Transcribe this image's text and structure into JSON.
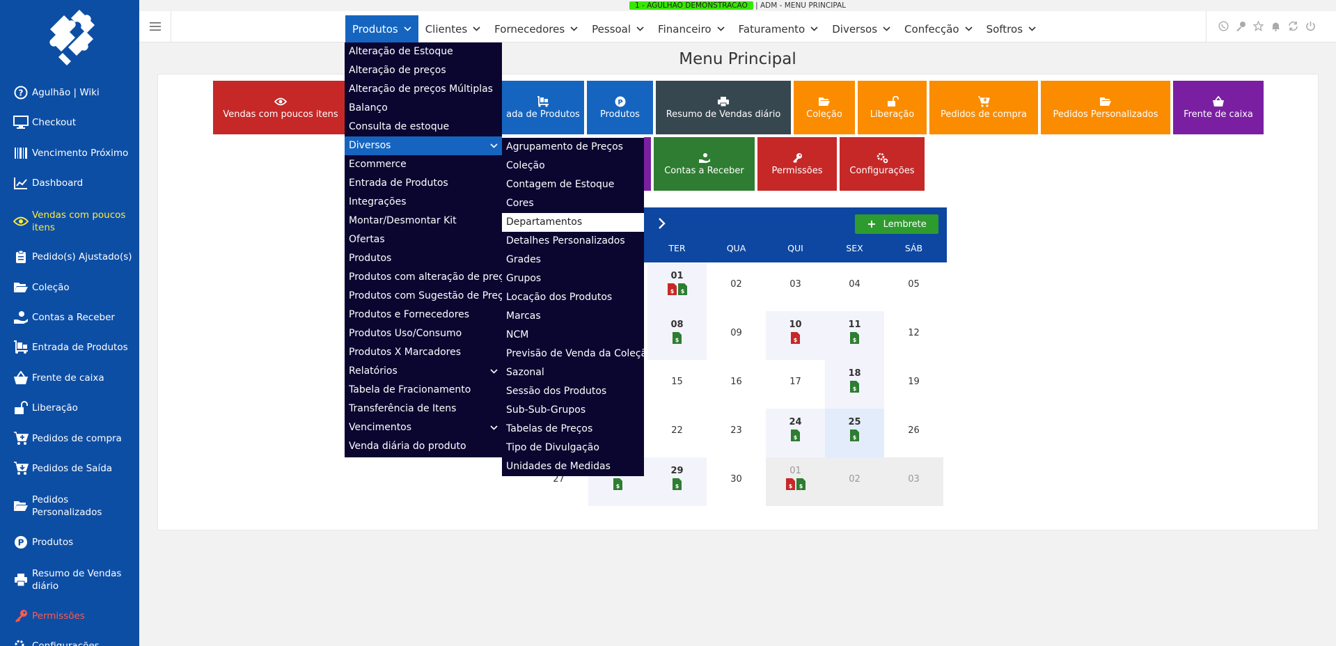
{
  "topbar": {
    "env_label": "1 - AGULHAO DEMONSTRACAO",
    "sep": "|",
    "context": "ADM - MENU PRINCIPAL"
  },
  "sidebar": {
    "items": [
      {
        "label": "Agulhão | Wiki",
        "icon": "help-circle-icon"
      },
      {
        "label": "Checkout",
        "icon": "monitor-icon"
      },
      {
        "label": "Vencimento Próximo",
        "icon": "barcode-icon"
      },
      {
        "label": "Dashboard",
        "icon": "line-chart-icon"
      },
      {
        "label": "Vendas com poucos itens",
        "icon": "eye-icon"
      },
      {
        "label": "Pedido(s) Ajustado(s)",
        "icon": "clipboard-icon"
      },
      {
        "label": "Coleção",
        "icon": "folder-open-icon"
      },
      {
        "label": "Contas a Receber",
        "icon": "hand-money-icon"
      },
      {
        "label": "Entrada de Produtos",
        "icon": "dolly-icon"
      },
      {
        "label": "Frente de caixa",
        "icon": "basket-icon"
      },
      {
        "label": "Liberação",
        "icon": "unlock-icon"
      },
      {
        "label": "Pedidos de compra",
        "icon": "cart-plus-icon"
      },
      {
        "label": "Pedidos de Saída",
        "icon": "cart-arrow-icon"
      },
      {
        "label": "Pedidos Personalizados",
        "icon": "folder-open-icon"
      },
      {
        "label": "Produtos",
        "icon": "product-p-icon"
      },
      {
        "label": "Resumo de Vendas diário",
        "icon": "printer-icon"
      },
      {
        "label": "Permissões",
        "icon": "key-icon"
      },
      {
        "label": "Configurações",
        "icon": "gears-icon"
      }
    ]
  },
  "nav": {
    "items": [
      "Produtos",
      "Clientes",
      "Fornecedores",
      "Pessoal",
      "Financeiro",
      "Faturamento",
      "Diversos",
      "Confecção",
      "Softros"
    ]
  },
  "header_icons": [
    "whatsapp-icon",
    "key-icon",
    "star-icon",
    "bell-icon",
    "refresh-icon",
    "power-icon"
  ],
  "page_title": "Menu Principal",
  "tiles": {
    "vendas_poucos": "Vendas com poucos itens",
    "entrada": "ada de Produtos",
    "produtos": "Produtos",
    "resumo": "Resumo de Vendas diário",
    "colecao": "Coleção",
    "liberacao": "Liberação",
    "pedidos_compra": "Pedidos de compra",
    "pedidos_personalizados": "Pedidos Personalizados",
    "frente_caixa": "Frente de caixa",
    "contas_receber": "Contas a Receber",
    "permissoes": "Permissões",
    "configuracoes": "Configurações"
  },
  "calendar": {
    "lembrete_label": "Lembrete",
    "weekdays_visible": [
      "TER",
      "QUA",
      "QUI",
      "SEX",
      "SÁB"
    ],
    "rows": [
      [
        "01",
        "02",
        "03",
        "04",
        "05"
      ],
      [
        "08",
        "09",
        "10",
        "11",
        "12"
      ],
      [
        "15",
        "16",
        "17",
        "18",
        "19"
      ],
      [
        "22",
        "23",
        "24",
        "25",
        "26"
      ],
      [
        "29",
        "30",
        "01",
        "02",
        "03"
      ]
    ],
    "row5_first_col": "27",
    "colors": {
      "doc_red": "#c62828",
      "doc_green": "#2e7d32"
    }
  },
  "menu_produtos": {
    "items": [
      "Alteração de Estoque",
      "Alteração de preços",
      "Alteração de preços Múltiplas",
      "Balanço",
      "Consulta de estoque",
      "Diversos",
      "Ecommerce",
      "Entrada de Produtos",
      "Integrações",
      "Montar/Desmontar Kit",
      "Ofertas",
      "Produtos",
      "Produtos com alteração de preço",
      "Produtos com Sugestão de Preço",
      "Produtos e Fornecedores",
      "Produtos Uso/Consumo",
      "Produtos X Marcadores",
      "Relatórios",
      "Tabela de Fracionamento",
      "Transferência de Itens",
      "Vencimentos",
      "Venda diária do produto"
    ]
  },
  "menu_diversos": {
    "items": [
      "Agrupamento de Preços",
      "Coleção",
      "Contagem de Estoque",
      "Cores",
      "Departamentos",
      "Detalhes Personalizados",
      "Grades",
      "Grupos",
      "Locação dos Produtos",
      "Marcas",
      "NCM",
      "Previsão de Venda da Coleção",
      "Sazonal",
      "Sessão dos Produtos",
      "Sub-Sub-Grupos",
      "Tabelas de Preços",
      "Tipo de Divulgação",
      "Unidades de Medidas"
    ]
  },
  "colors": {
    "sidebar": "#0d4ea5",
    "accent": "#1565c0",
    "menu_bg": "#0b0630",
    "active_text": "#ffeb3b"
  }
}
